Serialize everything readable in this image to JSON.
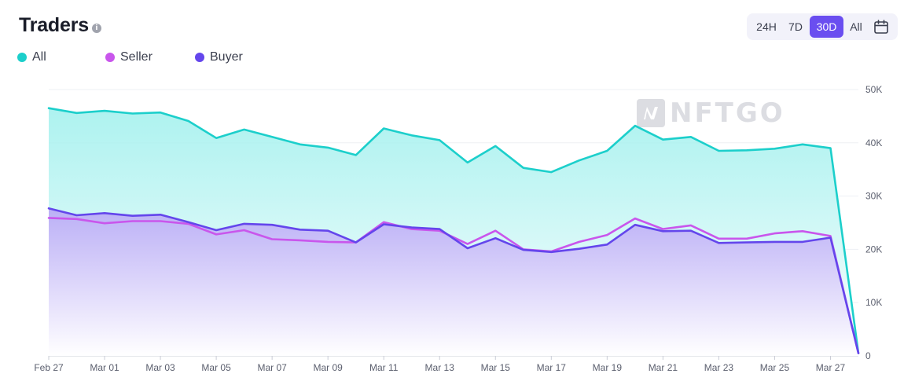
{
  "header": {
    "title": "Traders",
    "info_glyph": "i"
  },
  "range_selector": {
    "options": [
      "24H",
      "7D",
      "30D",
      "All"
    ],
    "active": "30D",
    "calendar_icon": "calendar-icon"
  },
  "watermark": {
    "text": "NFTGO"
  },
  "colors": {
    "all": "#1ccfcb",
    "seller": "#c956ec",
    "buyer": "#6446ec",
    "accent": "#6a4ef0"
  },
  "chart_data": {
    "type": "area",
    "legend": [
      "All",
      "Seller",
      "Buyer"
    ],
    "x": [
      "Feb 27",
      "Feb 28",
      "Mar 01",
      "Mar 02",
      "Mar 03",
      "Mar 04",
      "Mar 05",
      "Mar 06",
      "Mar 07",
      "Mar 08",
      "Mar 09",
      "Mar 10",
      "Mar 11",
      "Mar 12",
      "Mar 13",
      "Mar 14",
      "Mar 15",
      "Mar 16",
      "Mar 17",
      "Mar 18",
      "Mar 19",
      "Mar 20",
      "Mar 21",
      "Mar 22",
      "Mar 23",
      "Mar 24",
      "Mar 25",
      "Mar 26",
      "Mar 27",
      "Mar 28"
    ],
    "x_tick_labels": [
      "Feb 27",
      "Mar 01",
      "Mar 03",
      "Mar 05",
      "Mar 07",
      "Mar 09",
      "Mar 11",
      "Mar 13",
      "Mar 15",
      "Mar 17",
      "Mar 19",
      "Mar 21",
      "Mar 23",
      "Mar 25",
      "Mar 27"
    ],
    "y_tick_labels": [
      "0",
      "10K",
      "20K",
      "30K",
      "40K",
      "50K"
    ],
    "ylim": [
      0,
      50000
    ],
    "grid": true,
    "y_axis_side": "right",
    "legend_placement": "top-left",
    "series": [
      {
        "name": "All",
        "color": "#1ccfcb",
        "values": [
          46500,
          45600,
          46000,
          45500,
          45700,
          44100,
          40900,
          42500,
          41100,
          39700,
          39100,
          37700,
          42700,
          41400,
          40500,
          36300,
          39400,
          35300,
          34500,
          36700,
          38500,
          43200,
          40600,
          41100,
          38500,
          38600,
          38900,
          39700,
          39000,
          500
        ]
      },
      {
        "name": "Seller",
        "color": "#c956ec",
        "values": [
          25900,
          25700,
          24900,
          25300,
          25300,
          24800,
          22800,
          23600,
          21900,
          21700,
          21400,
          21300,
          25100,
          23800,
          23500,
          21000,
          23500,
          20000,
          19600,
          21400,
          22700,
          25800,
          23800,
          24500,
          22000,
          22000,
          23000,
          23400,
          22500,
          500
        ]
      },
      {
        "name": "Buyer",
        "color": "#6446ec",
        "values": [
          27700,
          26400,
          26800,
          26300,
          26500,
          25100,
          23600,
          24800,
          24600,
          23700,
          23500,
          21300,
          24700,
          24100,
          23800,
          20200,
          22100,
          19900,
          19500,
          20100,
          20900,
          24600,
          23400,
          23500,
          21200,
          21300,
          21400,
          21400,
          22200,
          500
        ]
      }
    ]
  }
}
